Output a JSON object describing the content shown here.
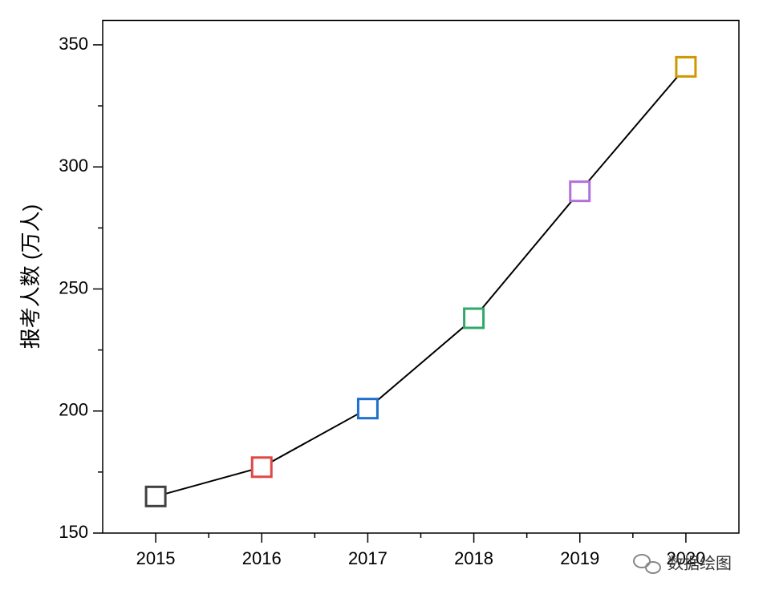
{
  "chart_data": {
    "type": "line",
    "y_label": "报考人数 (万人)",
    "x": [
      2015,
      2016,
      2017,
      2018,
      2019,
      2020
    ],
    "xlim": [
      2014.5,
      2020.5
    ],
    "xticks": [
      2015,
      2016,
      2017,
      2018,
      2019,
      2020
    ],
    "ylim": [
      150,
      360
    ],
    "yticks": [
      150,
      200,
      250,
      300,
      350
    ],
    "line_color": "#000000",
    "series": [
      {
        "values": [
          165,
          177,
          201,
          238,
          290,
          341
        ],
        "marker_colors": [
          "#404040",
          "#e04848",
          "#1f6fcc",
          "#2fa86a",
          "#b070dc",
          "#cc9900"
        ]
      }
    ],
    "grid": false,
    "watermark": "数据绘图"
  }
}
